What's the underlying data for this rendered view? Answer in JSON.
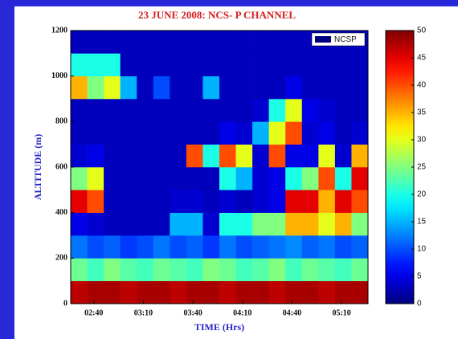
{
  "chart_data": {
    "type": "heatmap",
    "title": "23 JUNE 2008: NCS- P CHANNEL",
    "x_label": "TIME (Hrs)",
    "y_label": "ALTITUDE (m)",
    "x": [
      151,
      161,
      171,
      181,
      191,
      201,
      211,
      221,
      231,
      241,
      251,
      261,
      271,
      281,
      291,
      301,
      311,
      321
    ],
    "y": [
      50,
      150,
      250,
      350,
      450,
      550,
      650,
      750,
      850,
      950,
      1050,
      1150
    ],
    "xlim": [
      146,
      326
    ],
    "ylim": [
      0,
      1200
    ],
    "xticks": [
      {
        "value": 160,
        "label": "02:40"
      },
      {
        "value": 190,
        "label": "03:10"
      },
      {
        "value": 220,
        "label": "03:40"
      },
      {
        "value": 250,
        "label": "04:10"
      },
      {
        "value": 280,
        "label": "04:40"
      },
      {
        "value": 310,
        "label": "05:10"
      }
    ],
    "yticks": [
      0,
      200,
      400,
      600,
      800,
      1000,
      1200
    ],
    "colormap": "jet",
    "clim": [
      0,
      50
    ],
    "colorbar_ticks": [
      0,
      5,
      10,
      15,
      20,
      25,
      30,
      35,
      40,
      45,
      50
    ],
    "legend": "upper right",
    "series": [
      {
        "name": "NCSP",
        "z": [
          [
            47,
            48,
            48,
            47,
            48,
            48,
            47,
            48,
            48,
            47,
            48,
            48,
            47,
            48,
            48,
            47,
            48,
            48
          ],
          [
            24,
            22,
            25,
            23,
            22,
            24,
            23,
            22,
            25,
            24,
            22,
            23,
            25,
            22,
            24,
            23,
            22,
            24
          ],
          [
            12,
            10,
            11,
            9,
            10,
            12,
            10,
            11,
            9,
            12,
            10,
            11,
            12,
            13,
            11,
            12,
            10,
            11
          ],
          [
            5,
            4,
            3,
            3,
            3,
            3,
            15,
            15,
            4,
            20,
            20,
            25,
            25,
            35,
            35,
            30,
            35,
            25
          ],
          [
            45,
            40,
            3,
            3,
            3,
            3,
            4,
            4,
            3,
            4,
            3,
            4,
            5,
            45,
            45,
            35,
            45,
            40
          ],
          [
            25,
            30,
            3,
            3,
            3,
            3,
            3,
            3,
            3,
            20,
            15,
            4,
            5,
            20,
            25,
            40,
            20,
            45
          ],
          [
            4,
            5,
            3,
            3,
            3,
            3,
            3,
            40,
            20,
            40,
            30,
            4,
            40,
            5,
            5,
            30,
            4,
            35
          ],
          [
            3,
            3,
            3,
            3,
            3,
            3,
            3,
            3,
            3,
            5,
            4,
            15,
            30,
            40,
            4,
            5,
            3,
            4
          ],
          [
            3,
            3,
            3,
            3,
            3,
            3,
            3,
            3,
            3,
            3,
            3,
            4,
            20,
            30,
            5,
            4,
            3,
            3
          ],
          [
            35,
            25,
            30,
            15,
            3,
            10,
            3,
            3,
            15,
            3,
            3,
            3,
            3,
            5,
            3,
            3,
            3,
            3
          ],
          [
            20,
            20,
            20,
            3,
            3,
            3,
            3,
            3,
            3,
            3,
            3,
            3,
            3,
            3,
            3,
            3,
            3,
            3
          ],
          [
            3,
            3,
            3,
            3,
            3,
            3,
            3,
            3,
            3,
            3,
            3,
            3,
            3,
            3,
            3,
            3,
            3,
            3
          ]
        ]
      }
    ]
  }
}
